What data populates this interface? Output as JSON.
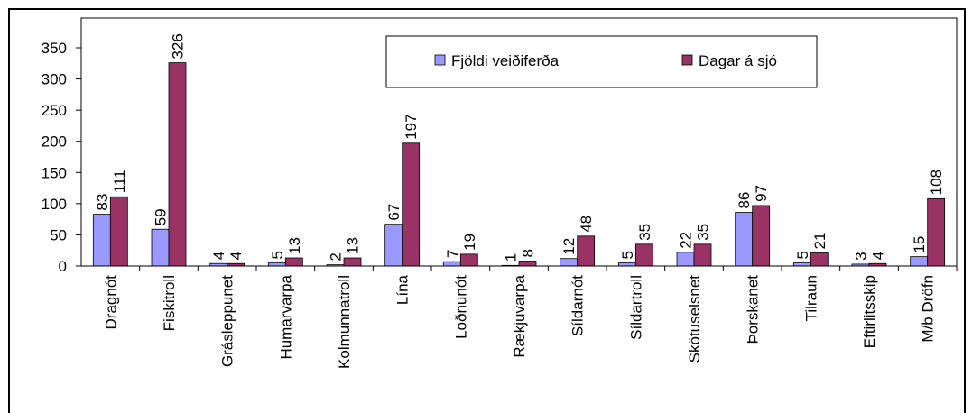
{
  "chart_data": {
    "type": "bar",
    "categories": [
      "Dragnót",
      "Fiskitroll",
      "Grásleppunet",
      "Humarvarpa",
      "Kolmunnatroll",
      "Lína",
      "Loðnunót",
      "Rækjuvarpa",
      "Síldarnót",
      "Síldartroll",
      "Skötuselsnet",
      "Þorskanet",
      "Tilraun",
      "Eftirlitsskip",
      "M/b Dröfn"
    ],
    "series": [
      {
        "name": "Fjöldi veiðiferða",
        "color": "#9999ff",
        "values": [
          83,
          59,
          4,
          5,
          2,
          67,
          7,
          1,
          12,
          5,
          22,
          86,
          5,
          3,
          15
        ]
      },
      {
        "name": "Dagar á sjó",
        "color": "#993366",
        "values": [
          111,
          326,
          4,
          13,
          13,
          197,
          19,
          8,
          48,
          35,
          35,
          97,
          21,
          4,
          108
        ]
      }
    ],
    "ylim": [
      0,
      350
    ],
    "yticks": [
      0,
      50,
      100,
      150,
      200,
      250,
      300,
      350
    ]
  }
}
